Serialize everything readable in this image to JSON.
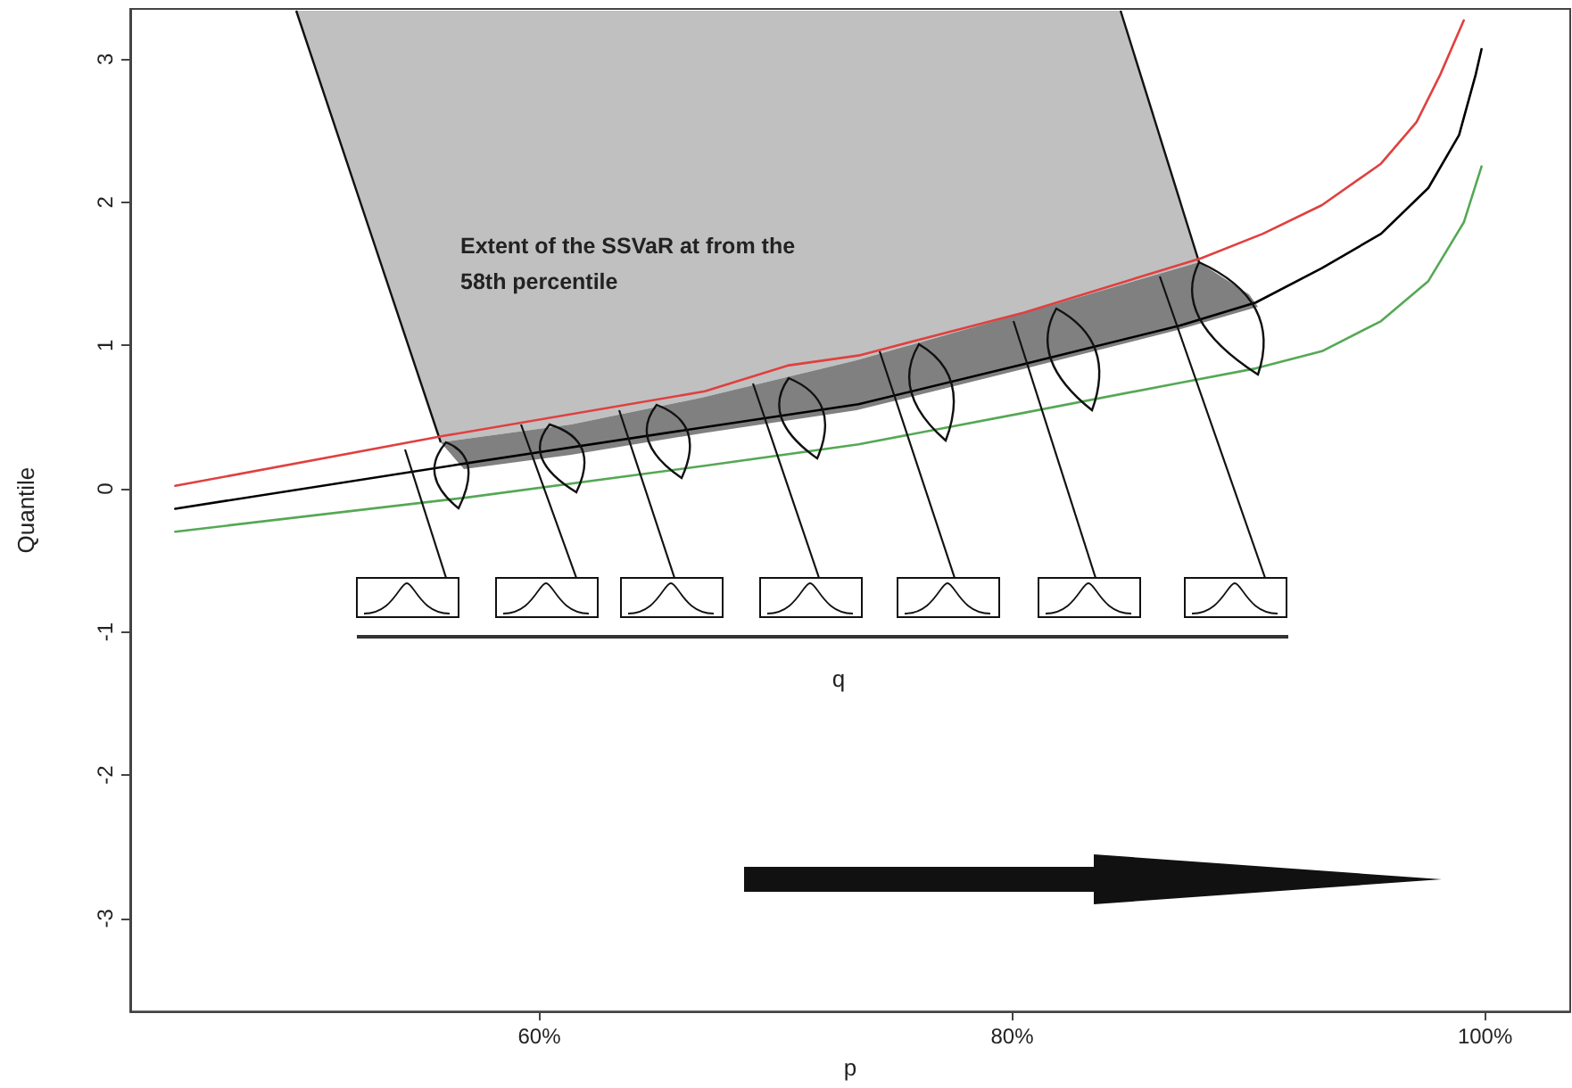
{
  "chart_data": {
    "type": "line",
    "xlabel": "p",
    "ylabel": "Quantile",
    "annotations": [
      "Extent of the SSVaR at from the 58th percentile",
      "q"
    ],
    "series": [
      {
        "color": "#e04040",
        "x": [
          44.6,
          56.0,
          67.0,
          70.5,
          73.5,
          80.5,
          88.0,
          90.6,
          93.1,
          95.6,
          97.1,
          98.1,
          99.1
        ],
        "values": [
          0.02,
          0.37,
          0.68,
          0.86,
          0.93,
          1.23,
          1.61,
          1.78,
          1.98,
          2.27,
          2.56,
          2.89,
          3.27
        ]
      },
      {
        "color": "#000000",
        "x": [
          44.6,
          57.0,
          67.0,
          73.5,
          80.5,
          87.1,
          90.3,
          93.1,
          95.6,
          97.6,
          98.9,
          99.6,
          99.85
        ],
        "values": [
          -0.14,
          0.18,
          0.43,
          0.59,
          0.87,
          1.14,
          1.3,
          1.54,
          1.78,
          2.1,
          2.47,
          2.89,
          3.07
        ]
      },
      {
        "color": "#55a855",
        "x": [
          44.6,
          57.0,
          67.0,
          73.5,
          80.5,
          87.1,
          90.3,
          93.1,
          95.6,
          97.6,
          99.1,
          99.85
        ],
        "values": [
          -0.3,
          -0.06,
          0.16,
          0.31,
          0.53,
          0.74,
          0.84,
          0.96,
          1.17,
          1.45,
          1.86,
          2.25
        ]
      }
    ],
    "xlim": [
      42.7,
      103.6
    ],
    "xticks": [
      {
        "value": 60,
        "label": "60%"
      },
      {
        "value": 80,
        "label": "80%"
      },
      {
        "value": 100,
        "label": "100%"
      }
    ],
    "ylim": [
      -3.65,
      3.35
    ],
    "yticks": [
      -3,
      -2,
      -1,
      0,
      1,
      2,
      3
    ],
    "grid": false,
    "marker": "none",
    "line_style": "solid"
  }
}
